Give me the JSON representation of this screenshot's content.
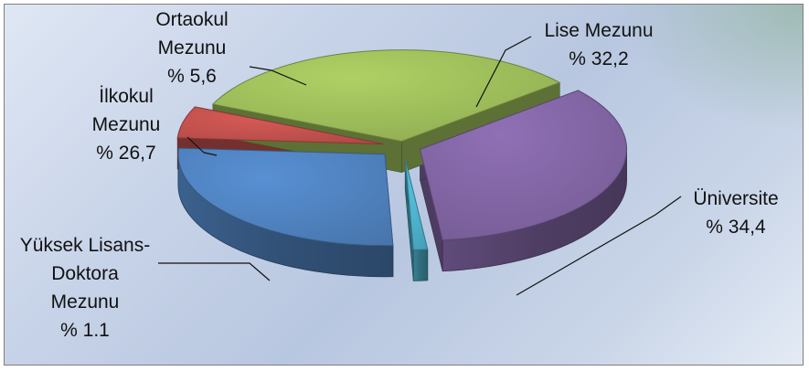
{
  "chart_data": {
    "type": "pie",
    "title": "",
    "slices": [
      {
        "label": "Lise Mezunu",
        "value_text": "% 32,2",
        "value": 32.2,
        "color": "#9bbb59"
      },
      {
        "label": "Üniversite",
        "value_text": "% 34,4",
        "value": 34.4,
        "color": "#8064a2"
      },
      {
        "label": "Yüksek Lisans-Doktora Mezunu",
        "label_lines": [
          "Yüksek Lisans-",
          "Doktora",
          "Mezunu"
        ],
        "value_text": "% 1.1",
        "value": 1.1,
        "color": "#4bacc6"
      },
      {
        "label": "İlkokul Mezunu",
        "label_lines": [
          "İlkokul",
          "Mezunu"
        ],
        "value_text": "% 26,7",
        "value": 26.7,
        "color": "#4f81bd"
      },
      {
        "label": "Ortaokul Mezunu",
        "label_lines": [
          "Ortaokul",
          "Mezunu"
        ],
        "value_text": "% 5,6",
        "value": 5.6,
        "color": "#c0504d"
      }
    ],
    "style": "3d-exploded",
    "legend": "none"
  }
}
